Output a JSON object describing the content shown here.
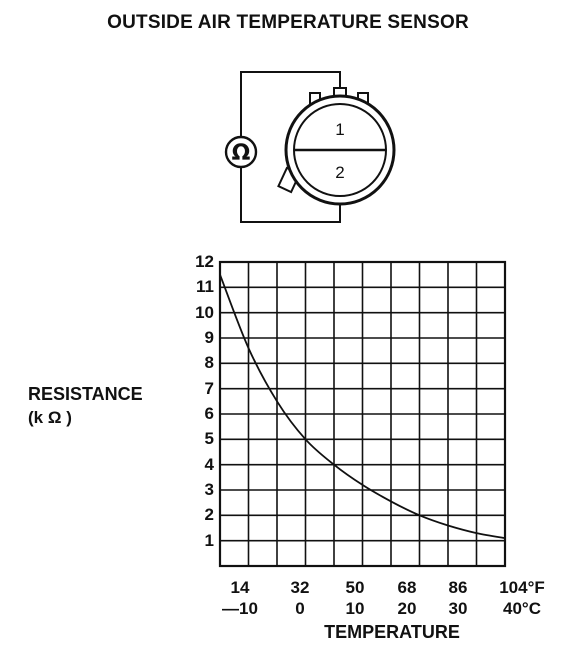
{
  "title": "OUTSIDE AIR TEMPERATURE SENSOR",
  "connector": {
    "pin1_label": "1",
    "pin2_label": "2",
    "meter_symbol": "Ω",
    "meter_icon": "ohmmeter-icon"
  },
  "chart_data": {
    "type": "line",
    "title": "",
    "ylabel": "RESISTANCE",
    "ylabel_unit": "(k Ω )",
    "xlabel": "TEMPERATURE",
    "ylim": [
      0,
      12
    ],
    "xlim_c": [
      -10,
      40
    ],
    "y_ticks": [
      "1",
      "2",
      "3",
      "4",
      "5",
      "6",
      "7",
      "8",
      "9",
      "10",
      "11",
      "12"
    ],
    "x_ticks_f": [
      "14",
      "32",
      "50",
      "68",
      "86",
      "104°F"
    ],
    "x_ticks_c": [
      "—10",
      "0",
      "10",
      "20",
      "30",
      "40°C"
    ],
    "grid": true,
    "series": [
      {
        "x": [
          -10,
          -5,
          0,
          5,
          10,
          15,
          20,
          25,
          30,
          35,
          40
        ],
        "y": [
          11.5,
          8.6,
          6.5,
          5.0,
          4.0,
          3.2,
          2.55,
          2.0,
          1.6,
          1.3,
          1.1
        ]
      }
    ]
  }
}
